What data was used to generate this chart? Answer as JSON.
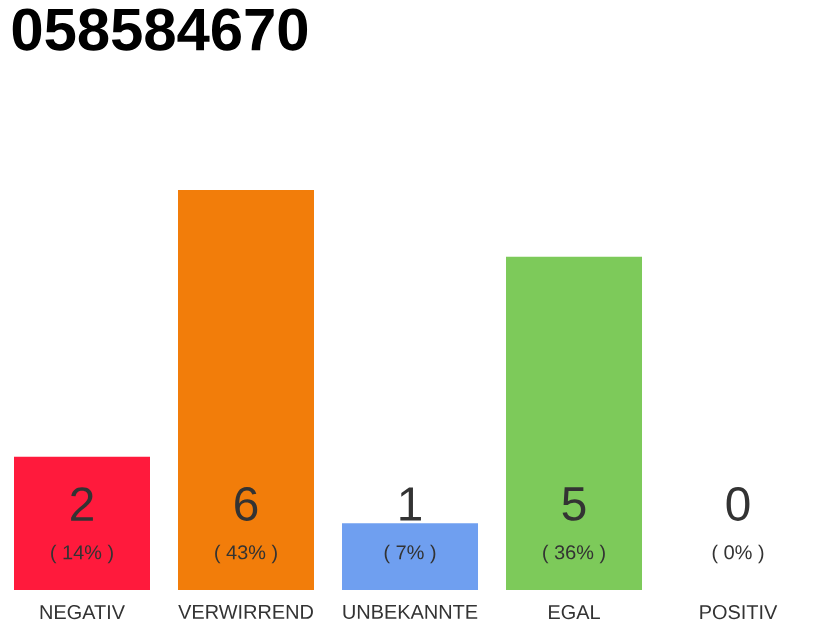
{
  "chart_data": {
    "type": "bar",
    "title": "058584670",
    "categories": [
      "NEGATIV",
      "VERWIRREND",
      "UNBEKANNTE",
      "EGAL",
      "POSITIV"
    ],
    "values": [
      2,
      6,
      1,
      5,
      0
    ],
    "colors": [
      "#ff1a3c",
      "#f27d0a",
      "#6f9ff0",
      "#7dca5a",
      "#bbbbbb"
    ],
    "data_labels": true,
    "annotations": [
      "( 14% )",
      "( 43% )",
      "( 7% )",
      "( 36% )",
      "( 0% )"
    ]
  }
}
